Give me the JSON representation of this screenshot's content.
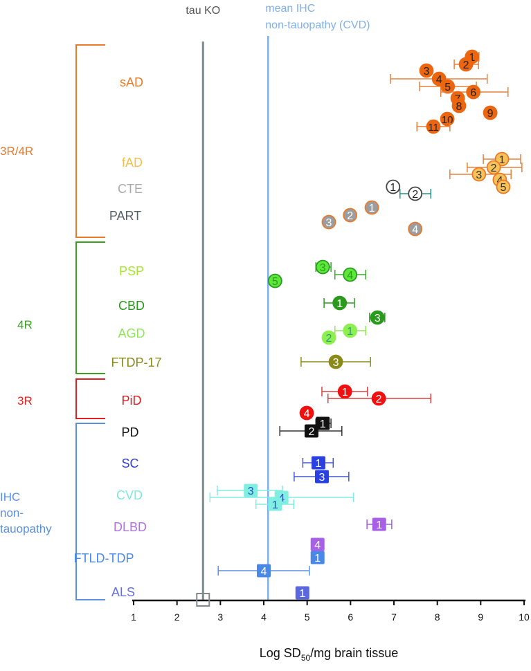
{
  "chart_data": {
    "type": "scatter",
    "xlabel_main": "Log SD",
    "xlabel_sub": "50",
    "xlabel_tail": "/mg brain tissue",
    "xlim": [
      1,
      10
    ],
    "xticks": [
      "1",
      "2",
      "3",
      "4",
      "5",
      "6",
      "7",
      "8",
      "9",
      "10"
    ],
    "reference_lines": [
      {
        "name": "tau KO",
        "label_lines": [
          "tau KO"
        ],
        "x": 2.6,
        "color": "#808a8c"
      },
      {
        "name": "mean IHC non-tauopathy (CVD)",
        "label_lines": [
          "mean IHC",
          "non-tauopathy (CVD)"
        ],
        "x": 4.1,
        "color": "#7fb0ea"
      }
    ],
    "tau_ko_marker": {
      "x": 2.6,
      "shape": "open-square"
    },
    "tau_types": [
      {
        "label_lines": [
          "3R/4R"
        ],
        "color": "#ea7a2a"
      },
      {
        "label_lines": [
          "4R"
        ],
        "color": "#3aa020"
      },
      {
        "label_lines": [
          "3R"
        ],
        "color": "#e02020"
      },
      {
        "label_lines": [
          "IHC",
          "non-",
          "tauopathy"
        ],
        "color": "#5a90e0"
      }
    ],
    "groups": [
      {
        "name": "sAD",
        "color": "#ea7a2a"
      },
      {
        "name": "fAD",
        "color": "#f5c04a"
      },
      {
        "name": "CTE",
        "color": "#aaaaaa"
      },
      {
        "name": "PART",
        "color": "#555f66"
      },
      {
        "name": "PSP",
        "color": "#a8e630"
      },
      {
        "name": "CBD",
        "color": "#2a9a1c"
      },
      {
        "name": "AGD",
        "color": "#8ee65a"
      },
      {
        "name": "FTDP-17",
        "color": "#8a8a1a"
      },
      {
        "name": "PiD",
        "color": "#e01b1b"
      },
      {
        "name": "PD",
        "color": "#111111"
      },
      {
        "name": "SC",
        "color": "#2f40d0"
      },
      {
        "name": "CVD",
        "color": "#80e8dc"
      },
      {
        "name": "DLBD",
        "color": "#b070e0"
      },
      {
        "name": "FTLD-TDP",
        "color": "#4a88e8"
      },
      {
        "name": "ALS",
        "color": "#6070e0"
      }
    ],
    "points": [
      {
        "group": "sAD",
        "label": "1",
        "x": 8.8,
        "err": [
          8.69,
          8.96
        ]
      },
      {
        "group": "sAD",
        "label": "2",
        "x": 8.66,
        "err": [
          8.39,
          8.95
        ]
      },
      {
        "group": "sAD",
        "label": "3",
        "x": 7.75
      },
      {
        "group": "sAD",
        "label": "4",
        "x": 8.04,
        "err": [
          6.92,
          9.15
        ]
      },
      {
        "group": "sAD",
        "label": "5",
        "x": 8.24,
        "err": [
          7.59,
          8.9
        ]
      },
      {
        "group": "sAD",
        "label": "6",
        "x": 8.83,
        "err": [
          8.08,
          9.63
        ]
      },
      {
        "group": "sAD",
        "label": "7",
        "x": 8.47
      },
      {
        "group": "sAD",
        "label": "8",
        "x": 8.5
      },
      {
        "group": "sAD",
        "label": "9",
        "x": 9.22
      },
      {
        "group": "sAD",
        "label": "10",
        "x": 8.23
      },
      {
        "group": "sAD",
        "label": "11",
        "x": 7.91,
        "err": [
          7.53,
          8.29
        ]
      },
      {
        "group": "fAD",
        "label": "1",
        "x": 9.49,
        "err": [
          9.06,
          9.92
        ]
      },
      {
        "group": "fAD",
        "label": "2",
        "x": 9.3,
        "err": [
          8.69,
          9.95
        ]
      },
      {
        "group": "fAD",
        "label": "3",
        "x": 8.96,
        "err": [
          8.29,
          9.7
        ]
      },
      {
        "group": "fAD",
        "label": "4",
        "x": 9.44
      },
      {
        "group": "fAD",
        "label": "5",
        "x": 9.52
      },
      {
        "group": "CTE",
        "label": "1",
        "x": 6.98
      },
      {
        "group": "CTE",
        "label": "2",
        "x": 7.49,
        "err": [
          7.14,
          7.85
        ]
      },
      {
        "group": "PART",
        "label": "1",
        "x": 6.49
      },
      {
        "group": "PART",
        "label": "2",
        "x": 5.99
      },
      {
        "group": "PART",
        "label": "3",
        "x": 5.5
      },
      {
        "group": "PART",
        "label": "4",
        "x": 7.49
      },
      {
        "group": "PSP",
        "label": "3",
        "x": 5.36,
        "err": [
          5.2,
          5.55
        ]
      },
      {
        "group": "PSP",
        "label": "4",
        "x": 5.99,
        "err": [
          5.64,
          6.35
        ]
      },
      {
        "group": "PSP",
        "label": "5",
        "x": 4.26
      },
      {
        "group": "CBD",
        "label": "1",
        "x": 5.75,
        "err": [
          5.39,
          6.09
        ]
      },
      {
        "group": "CBD",
        "label": "3",
        "x": 6.62,
        "err": [
          6.44,
          6.79
        ]
      },
      {
        "group": "AGD",
        "label": "1",
        "x": 5.99,
        "err": [
          5.64,
          6.35
        ]
      },
      {
        "group": "AGD",
        "label": "2",
        "x": 5.5
      },
      {
        "group": "FTDP-17",
        "label": "3",
        "x": 5.66,
        "err": [
          4.86,
          6.46
        ]
      },
      {
        "group": "PiD",
        "label": "1",
        "x": 5.87,
        "err": [
          5.34,
          6.39
        ]
      },
      {
        "group": "PiD",
        "label": "2",
        "x": 6.65,
        "err": [
          5.48,
          7.85
        ]
      },
      {
        "group": "PiD",
        "label": "4",
        "x": 4.99
      },
      {
        "group": "PD",
        "label": "1",
        "x": 5.36,
        "err": [
          5.2,
          5.55
        ]
      },
      {
        "group": "PD",
        "label": "2",
        "x": 5.1,
        "err": [
          4.37,
          5.8
        ]
      },
      {
        "group": "SC",
        "label": "1",
        "x": 5.26,
        "err": [
          4.9,
          5.6
        ]
      },
      {
        "group": "SC",
        "label": "3",
        "x": 5.34,
        "err": [
          4.7,
          5.96
        ]
      },
      {
        "group": "CVD",
        "label": "3",
        "x": 3.7,
        "err": [
          2.93,
          4.43
        ]
      },
      {
        "group": "CVD",
        "label": "4",
        "x": 4.41,
        "err": [
          2.76,
          6.07
        ]
      },
      {
        "group": "CVD",
        "label": "1",
        "x": 4.26,
        "err": [
          3.82,
          4.69
        ]
      },
      {
        "group": "DLBD",
        "label": "1",
        "x": 6.66,
        "err": [
          6.38,
          6.95
        ]
      },
      {
        "group": "FTLD-TDP",
        "label": "4",
        "x": 5.24
      },
      {
        "group": "FTLD-TDP",
        "label": "1",
        "x": 5.24
      },
      {
        "group": "FTLD-TDP",
        "label": "4",
        "x": 4.0,
        "err": [
          2.95,
          5.05
        ]
      },
      {
        "group": "ALS",
        "label": "1",
        "x": 4.89
      }
    ]
  }
}
